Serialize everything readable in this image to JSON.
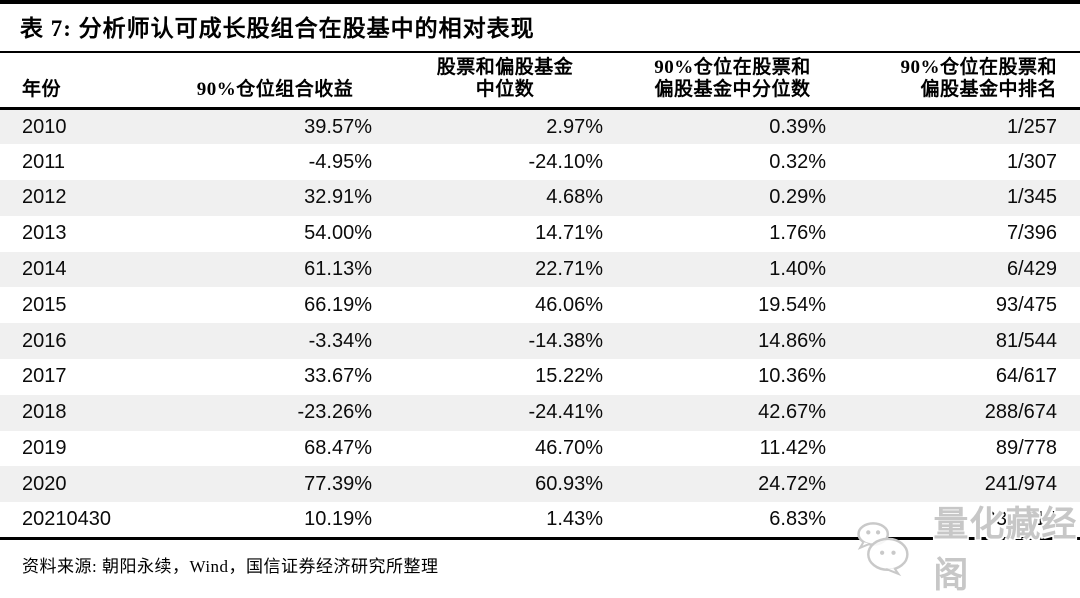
{
  "table": {
    "title": "表 7: 分析师认可成长股组合在股基中的相对表现",
    "columns": [
      {
        "line1": "年份",
        "line2": ""
      },
      {
        "line1": "90%仓位组合收益",
        "line2": ""
      },
      {
        "line1": "股票和偏股基金",
        "line2": "中位数"
      },
      {
        "line1": "90%仓位在股票和",
        "line2": "偏股基金中分位数"
      },
      {
        "line1": "90%仓位在股票和",
        "line2": "偏股基金中排名"
      }
    ],
    "rows": [
      [
        "2010",
        "39.57%",
        "2.97%",
        "0.39%",
        "1/257"
      ],
      [
        "2011",
        "-4.95%",
        "-24.10%",
        "0.32%",
        "1/307"
      ],
      [
        "2012",
        "32.91%",
        "4.68%",
        "0.29%",
        "1/345"
      ],
      [
        "2013",
        "54.00%",
        "14.71%",
        "1.76%",
        "7/396"
      ],
      [
        "2014",
        "61.13%",
        "22.71%",
        "1.40%",
        "6/429"
      ],
      [
        "2015",
        "66.19%",
        "46.06%",
        "19.54%",
        "93/475"
      ],
      [
        "2016",
        "-3.34%",
        "-14.38%",
        "14.86%",
        "81/544"
      ],
      [
        "2017",
        "33.67%",
        "15.22%",
        "10.36%",
        "64/617"
      ],
      [
        "2018",
        "-23.26%",
        "-24.41%",
        "42.67%",
        "288/674"
      ],
      [
        "2019",
        "68.47%",
        "46.70%",
        "11.42%",
        "89/778"
      ],
      [
        "2020",
        "77.39%",
        "60.93%",
        "24.72%",
        "241/974"
      ],
      [
        "20210430",
        "10.19%",
        "1.43%",
        "6.83%",
        "93/1214"
      ]
    ],
    "source": "资料来源: 朝阳永续，Wind，国信证券经济研究所整理"
  },
  "watermark": {
    "text": "量化藏经阁",
    "icon": "wechat-icon",
    "color": "#c7c7c7"
  },
  "colors": {
    "stripe": "#f0f0f0",
    "rule": "#000000",
    "text": "#000000",
    "background": "#ffffff"
  }
}
